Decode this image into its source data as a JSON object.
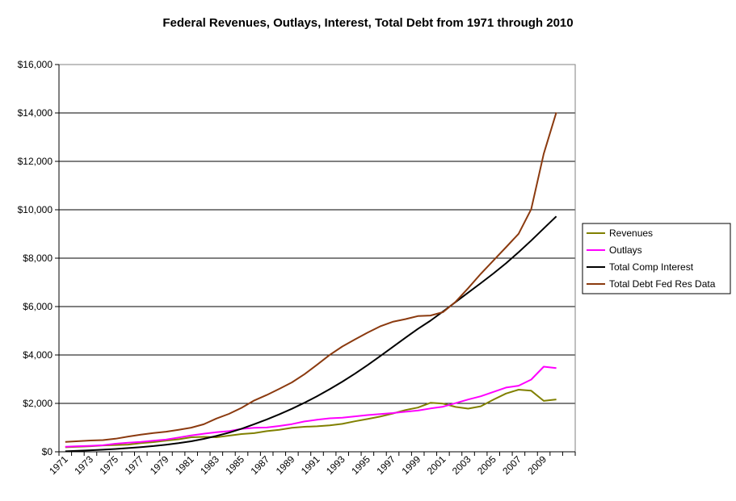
{
  "chart_data": {
    "type": "line",
    "title": "Federal Revenues, Outlays, Interest, Total Debt from 1971 through 2010",
    "xlabel": "",
    "ylabel": "",
    "x": [
      1971,
      1972,
      1973,
      1974,
      1975,
      1976,
      1977,
      1978,
      1979,
      1980,
      1981,
      1982,
      1983,
      1984,
      1985,
      1986,
      1987,
      1988,
      1989,
      1990,
      1991,
      1992,
      1993,
      1994,
      1995,
      1996,
      1997,
      1998,
      1999,
      2000,
      2001,
      2002,
      2003,
      2004,
      2005,
      2006,
      2007,
      2008,
      2009,
      2010
    ],
    "x_tick_labels": [
      "1971",
      "1973",
      "1975",
      "1977",
      "1979",
      "1981",
      "1983",
      "1985",
      "1987",
      "1989",
      "1991",
      "1993",
      "1995",
      "1997",
      "1999",
      "2001",
      "2003",
      "2005",
      "2007",
      "2009"
    ],
    "ylim": [
      0,
      16000
    ],
    "y_ticks": [
      0,
      2000,
      4000,
      6000,
      8000,
      10000,
      12000,
      14000,
      16000
    ],
    "y_tick_labels": [
      "$0",
      "$2,000",
      "$4,000",
      "$6,000",
      "$8,000",
      "$10,000",
      "$12,000",
      "$14,000",
      "$16,000"
    ],
    "grid": "horizontal major gridlines",
    "legend_position": "right",
    "series": [
      {
        "name": "Revenues",
        "color": "#808000",
        "values": [
          187,
          207,
          231,
          263,
          279,
          298,
          356,
          400,
          463,
          517,
          599,
          618,
          601,
          666,
          734,
          769,
          854,
          909,
          991,
          1032,
          1055,
          1091,
          1154,
          1259,
          1352,
          1453,
          1579,
          1722,
          1827,
          2025,
          1991,
          1853,
          1783,
          1880,
          2154,
          2407,
          2568,
          2524,
          2105,
          2163
        ]
      },
      {
        "name": "Outlays",
        "color": "#ff00ff",
        "values": [
          210,
          231,
          246,
          269,
          332,
          372,
          409,
          459,
          504,
          591,
          678,
          746,
          808,
          852,
          946,
          990,
          1004,
          1065,
          1144,
          1253,
          1324,
          1382,
          1410,
          1462,
          1516,
          1561,
          1601,
          1652,
          1702,
          1789,
          1863,
          2011,
          2160,
          2293,
          2472,
          2655,
          2729,
          2983,
          3518,
          3456
        ]
      },
      {
        "name": "Total Comp Interest",
        "color": "#000000",
        "values": [
          20,
          40,
          62,
          88,
          118,
          152,
          192,
          238,
          292,
          356,
          434,
          534,
          654,
          790,
          954,
          1140,
          1336,
          1546,
          1776,
          2026,
          2296,
          2586,
          2896,
          3226,
          3576,
          3946,
          4326,
          4706,
          5076,
          5416,
          5796,
          6186,
          6576,
          6966,
          7366,
          7786,
          8246,
          8726,
          9226,
          9726
        ]
      },
      {
        "name": "Total Debt Fed Res Data",
        "color": "#8b3a0f",
        "values": [
          408,
          436,
          466,
          484,
          541,
          629,
          706,
          777,
          829,
          909,
          995,
          1137,
          1372,
          1565,
          1817,
          2121,
          2346,
          2601,
          2868,
          3206,
          3598,
          4002,
          4351,
          4643,
          4921,
          5181,
          5370,
          5479,
          5606,
          5629,
          5770,
          6198,
          6760,
          7355,
          7905,
          8451,
          9008,
          10025,
          12311,
          14025
        ]
      }
    ]
  }
}
